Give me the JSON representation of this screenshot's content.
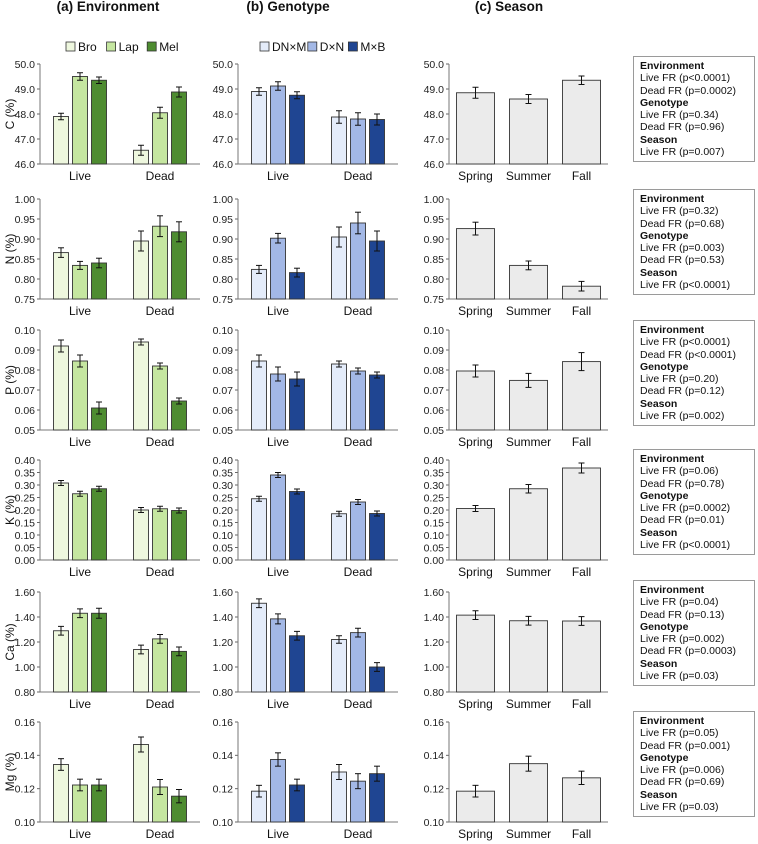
{
  "columns": [
    {
      "key": "environment",
      "title": "(a)  Environment",
      "legend": [
        "Bro",
        "Lap",
        "Mel"
      ],
      "colors": [
        "#eef7de",
        "#c5e6a0",
        "#4e8c31"
      ],
      "categories": [
        "Live",
        "Dead"
      ]
    },
    {
      "key": "genotype",
      "title": "(b)  Genotype",
      "legend": [
        "DN×M",
        "D×N",
        "M×B"
      ],
      "colors": [
        "#e4ecfa",
        "#a3b8e6",
        "#1f4592"
      ],
      "categories": [
        "Live",
        "Dead"
      ]
    },
    {
      "key": "season",
      "title": "(c)  Season",
      "legend": [],
      "colors": [
        "#ebebeb"
      ],
      "categories": [
        "Spring",
        "Summer",
        "Fall"
      ]
    }
  ],
  "chart_data": [
    {
      "type": "bar",
      "row": "C",
      "ylabel": "C (%)",
      "ylim": [
        46.0,
        50.0
      ],
      "yticks": [
        "46.0",
        "47.0",
        "48.0",
        "49.0",
        "50.0"
      ],
      "environment": {
        "categories": [
          "Live",
          "Dead"
        ],
        "series": [
          {
            "name": "Bro",
            "values": [
              47.9,
              46.55
            ],
            "errors": [
              0.13,
              0.2
            ]
          },
          {
            "name": "Lap",
            "values": [
              49.5,
              48.05
            ],
            "errors": [
              0.15,
              0.22
            ]
          },
          {
            "name": "Mel",
            "values": [
              49.35,
              48.88
            ],
            "errors": [
              0.13,
              0.2
            ]
          }
        ]
      },
      "genotype": {
        "categories": [
          "Live",
          "Dead"
        ],
        "series": [
          {
            "name": "DN×M",
            "values": [
              48.9,
              47.88
            ],
            "errors": [
              0.15,
              0.25
            ]
          },
          {
            "name": "D×N",
            "values": [
              49.12,
              47.8
            ],
            "errors": [
              0.17,
              0.25
            ]
          },
          {
            "name": "M×B",
            "values": [
              48.75,
              47.78
            ],
            "errors": [
              0.14,
              0.22
            ]
          }
        ]
      },
      "season": {
        "categories": [
          "Spring",
          "Summer",
          "Fall"
        ],
        "values": [
          48.85,
          48.6,
          49.35
        ],
        "errors": [
          0.22,
          0.18,
          0.17
        ]
      }
    },
    {
      "type": "bar",
      "row": "N",
      "ylabel": "N (%)",
      "ylim": [
        0.75,
        1.0
      ],
      "yticks": [
        "0.75",
        "0.80",
        "0.85",
        "0.90",
        "0.95",
        "1.00"
      ],
      "environment": {
        "categories": [
          "Live",
          "Dead"
        ],
        "series": [
          {
            "name": "Bro",
            "values": [
              0.866,
              0.895
            ],
            "errors": [
              0.012,
              0.025
            ]
          },
          {
            "name": "Lap",
            "values": [
              0.834,
              0.932
            ],
            "errors": [
              0.01,
              0.026
            ]
          },
          {
            "name": "Mel",
            "values": [
              0.84,
              0.918
            ],
            "errors": [
              0.012,
              0.025
            ]
          }
        ]
      },
      "genotype": {
        "categories": [
          "Live",
          "Dead"
        ],
        "series": [
          {
            "name": "DN×M",
            "values": [
              0.824,
              0.905
            ],
            "errors": [
              0.01,
              0.025
            ]
          },
          {
            "name": "D×N",
            "values": [
              0.902,
              0.94
            ],
            "errors": [
              0.012,
              0.027
            ]
          },
          {
            "name": "M×B",
            "values": [
              0.816,
              0.895
            ],
            "errors": [
              0.011,
              0.025
            ]
          }
        ]
      },
      "season": {
        "categories": [
          "Spring",
          "Summer",
          "Fall"
        ],
        "values": [
          0.926,
          0.834,
          0.782
        ],
        "errors": [
          0.016,
          0.011,
          0.012
        ]
      }
    },
    {
      "type": "bar",
      "row": "P",
      "ylabel": "P (%)",
      "ylim": [
        0.05,
        0.1
      ],
      "yticks": [
        "0.05",
        "0.06",
        "0.07",
        "0.08",
        "0.09",
        "0.10"
      ],
      "environment": {
        "categories": [
          "Live",
          "Dead"
        ],
        "series": [
          {
            "name": "Bro",
            "values": [
              0.092,
              0.094
            ],
            "errors": [
              0.003,
              0.0015
            ]
          },
          {
            "name": "Lap",
            "values": [
              0.0845,
              0.082
            ],
            "errors": [
              0.003,
              0.0015
            ]
          },
          {
            "name": "Mel",
            "values": [
              0.061,
              0.0645
            ],
            "errors": [
              0.003,
              0.0015
            ]
          }
        ]
      },
      "genotype": {
        "categories": [
          "Live",
          "Dead"
        ],
        "series": [
          {
            "name": "DN×M",
            "values": [
              0.0845,
              0.083
            ],
            "errors": [
              0.003,
              0.0015
            ]
          },
          {
            "name": "D×N",
            "values": [
              0.078,
              0.0795
            ],
            "errors": [
              0.0035,
              0.0015
            ]
          },
          {
            "name": "M×B",
            "values": [
              0.0755,
              0.0775
            ],
            "errors": [
              0.0035,
              0.0015
            ]
          }
        ]
      },
      "season": {
        "categories": [
          "Spring",
          "Summer",
          "Fall"
        ],
        "values": [
          0.0795,
          0.0748,
          0.0842
        ],
        "errors": [
          0.003,
          0.0035,
          0.0045
        ]
      }
    },
    {
      "type": "bar",
      "row": "K",
      "ylabel": "K (%)",
      "ylim": [
        0.0,
        0.4
      ],
      "yticks": [
        "0.00",
        "0.05",
        "0.10",
        "0.15",
        "0.20",
        "0.25",
        "0.30",
        "0.35",
        "0.40"
      ],
      "environment": {
        "categories": [
          "Live",
          "Dead"
        ],
        "series": [
          {
            "name": "Bro",
            "values": [
              0.308,
              0.2
            ],
            "errors": [
              0.01,
              0.01
            ]
          },
          {
            "name": "Lap",
            "values": [
              0.265,
              0.205
            ],
            "errors": [
              0.01,
              0.01
            ]
          },
          {
            "name": "Mel",
            "values": [
              0.285,
              0.198
            ],
            "errors": [
              0.01,
              0.01
            ]
          }
        ]
      },
      "genotype": {
        "categories": [
          "Live",
          "Dead"
        ],
        "series": [
          {
            "name": "DN×M",
            "values": [
              0.245,
              0.185
            ],
            "errors": [
              0.01,
              0.01
            ]
          },
          {
            "name": "D×N",
            "values": [
              0.34,
              0.232
            ],
            "errors": [
              0.01,
              0.01
            ]
          },
          {
            "name": "M×B",
            "values": [
              0.274,
              0.186
            ],
            "errors": [
              0.01,
              0.01
            ]
          }
        ]
      },
      "season": {
        "categories": [
          "Spring",
          "Summer",
          "Fall"
        ],
        "values": [
          0.206,
          0.285,
          0.368
        ],
        "errors": [
          0.012,
          0.017,
          0.02
        ]
      }
    },
    {
      "type": "bar",
      "row": "Ca",
      "ylabel": "Ca (%)",
      "ylim": [
        0.8,
        1.6
      ],
      "yticks": [
        "0.80",
        "1.00",
        "1.20",
        "1.40",
        "1.60"
      ],
      "environment": {
        "categories": [
          "Live",
          "Dead"
        ],
        "series": [
          {
            "name": "Bro",
            "values": [
              1.29,
              1.14
            ],
            "errors": [
              0.035,
              0.035
            ]
          },
          {
            "name": "Lap",
            "values": [
              1.43,
              1.225
            ],
            "errors": [
              0.035,
              0.035
            ]
          },
          {
            "name": "Mel",
            "values": [
              1.43,
              1.125
            ],
            "errors": [
              0.04,
              0.035
            ]
          }
        ]
      },
      "genotype": {
        "categories": [
          "Live",
          "Dead"
        ],
        "series": [
          {
            "name": "DN×M",
            "values": [
              1.51,
              1.22
            ],
            "errors": [
              0.035,
              0.03
            ]
          },
          {
            "name": "D×N",
            "values": [
              1.385,
              1.275
            ],
            "errors": [
              0.04,
              0.035
            ]
          },
          {
            "name": "M×B",
            "values": [
              1.25,
              1.0
            ],
            "errors": [
              0.035,
              0.035
            ]
          }
        ]
      },
      "season": {
        "categories": [
          "Spring",
          "Summer",
          "Fall"
        ],
        "values": [
          1.415,
          1.37,
          1.368
        ],
        "errors": [
          0.035,
          0.035,
          0.035
        ]
      }
    },
    {
      "type": "bar",
      "row": "Mg",
      "ylabel": "Mg (%)",
      "ylim": [
        0.1,
        0.16
      ],
      "yticks": [
        "0.10",
        "0.12",
        "0.14",
        "0.16"
      ],
      "environment": {
        "categories": [
          "Live",
          "Dead"
        ],
        "series": [
          {
            "name": "Bro",
            "values": [
              0.1345,
              0.1465
            ],
            "errors": [
              0.0035,
              0.0045
            ]
          },
          {
            "name": "Lap",
            "values": [
              0.1222,
              0.121
            ],
            "errors": [
              0.0035,
              0.0045
            ]
          },
          {
            "name": "Mel",
            "values": [
              0.1222,
              0.1155
            ],
            "errors": [
              0.0035,
              0.004
            ]
          }
        ]
      },
      "genotype": {
        "categories": [
          "Live",
          "Dead"
        ],
        "series": [
          {
            "name": "DN×M",
            "values": [
              0.1185,
              0.13
            ],
            "errors": [
              0.0035,
              0.0045
            ]
          },
          {
            "name": "D×N",
            "values": [
              0.1375,
              0.1245
            ],
            "errors": [
              0.004,
              0.0045
            ]
          },
          {
            "name": "M×B",
            "values": [
              0.1222,
              0.129
            ],
            "errors": [
              0.0035,
              0.0045
            ]
          }
        ]
      },
      "season": {
        "categories": [
          "Spring",
          "Summer",
          "Fall"
        ],
        "values": [
          0.1185,
          0.135,
          0.1265
        ],
        "errors": [
          0.0035,
          0.0045,
          0.004
        ]
      }
    }
  ],
  "stats": [
    {
      "row": "C",
      "lines": [
        {
          "t": "Environment",
          "h": true
        },
        {
          "t": "Live FR (p<0.0001)"
        },
        {
          "t": "Dead FR (p=0.0002)"
        },
        {
          "t": "Genotype",
          "h": true
        },
        {
          "t": "Live FR (p=0.34)"
        },
        {
          "t": "Dead FR (p=0.96)"
        },
        {
          "t": "Season",
          "h": true
        },
        {
          "t": "Live FR (p=0.007)"
        }
      ]
    },
    {
      "row": "N",
      "lines": [
        {
          "t": "Environment",
          "h": true
        },
        {
          "t": "Live FR (p=0.32)"
        },
        {
          "t": "Dead FR (p=0.68)"
        },
        {
          "t": "Genotype",
          "h": true
        },
        {
          "t": "Live FR (p=0.003)"
        },
        {
          "t": "Dead FR (p=0.53)"
        },
        {
          "t": "Season",
          "h": true
        },
        {
          "t": "Live FR (p<0.0001)"
        }
      ]
    },
    {
      "row": "P",
      "lines": [
        {
          "t": "Environment",
          "h": true
        },
        {
          "t": "Live FR (p<0.0001)"
        },
        {
          "t": "Dead FR (p<0.0001)"
        },
        {
          "t": "Genotype",
          "h": true
        },
        {
          "t": "Live FR (p=0.20)"
        },
        {
          "t": "Dead FR (p=0.12)"
        },
        {
          "t": "Season",
          "h": true
        },
        {
          "t": "Live FR (p=0.002)"
        }
      ]
    },
    {
      "row": "K",
      "lines": [
        {
          "t": "Environment",
          "h": true
        },
        {
          "t": "Live FR (p=0.06)"
        },
        {
          "t": "Dead FR (p=0.78)"
        },
        {
          "t": "Genotype",
          "h": true
        },
        {
          "t": "Live FR (p=0.0002)"
        },
        {
          "t": "Dead FR (p=0.01)"
        },
        {
          "t": "Season",
          "h": true
        },
        {
          "t": "Live FR (p<0.0001)"
        }
      ]
    },
    {
      "row": "Ca",
      "lines": [
        {
          "t": "Environment",
          "h": true
        },
        {
          "t": "Live FR (p=0.04)"
        },
        {
          "t": "Dead FR (p=0.13)"
        },
        {
          "t": "Genotype",
          "h": true
        },
        {
          "t": "Live FR (p=0.002)"
        },
        {
          "t": "Dead FR (p=0.0003)"
        },
        {
          "t": "Season",
          "h": true
        },
        {
          "t": "Live FR (p=0.03)"
        }
      ]
    },
    {
      "row": "Mg",
      "lines": [
        {
          "t": "Environment",
          "h": true
        },
        {
          "t": "Live FR (p=0.05)"
        },
        {
          "t": "Dead FR (p=0.001)"
        },
        {
          "t": "Genotype",
          "h": true
        },
        {
          "t": "Live FR (p=0.006)"
        },
        {
          "t": "Dead FR (p=0.69)"
        },
        {
          "t": "Season",
          "h": true
        },
        {
          "t": "Live FR (p=0.03)"
        }
      ]
    }
  ]
}
